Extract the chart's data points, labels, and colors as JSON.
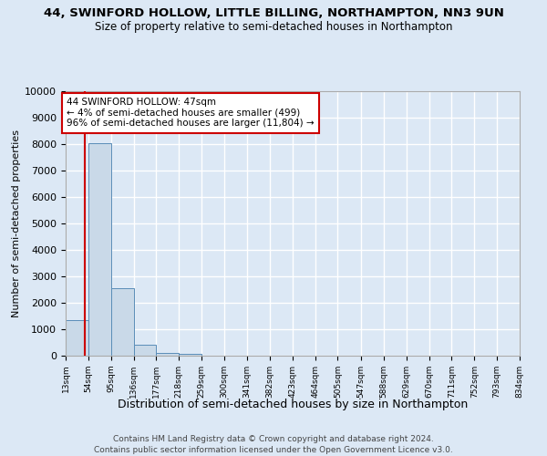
{
  "title1": "44, SWINFORD HOLLOW, LITTLE BILLING, NORTHAMPTON, NN3 9UN",
  "title2": "Size of property relative to semi-detached houses in Northampton",
  "xlabel": "Distribution of semi-detached houses by size in Northampton",
  "ylabel": "Number of semi-detached properties",
  "footer1": "Contains HM Land Registry data © Crown copyright and database right 2024.",
  "footer2": "Contains public sector information licensed under the Open Government Licence v3.0.",
  "annotation_title": "44 SWINFORD HOLLOW: 47sqm",
  "annotation_line2": "← 4% of semi-detached houses are smaller (499)",
  "annotation_line3": "96% of semi-detached houses are larger (11,804) →",
  "property_line_x": 47,
  "bar_edges": [
    13,
    54,
    95,
    136,
    177,
    218,
    259,
    300,
    341,
    382,
    423,
    464,
    505,
    547,
    588,
    629,
    670,
    711,
    752,
    793,
    834
  ],
  "bar_heights": [
    1350,
    8050,
    2550,
    400,
    120,
    80,
    0,
    0,
    0,
    0,
    0,
    0,
    0,
    0,
    0,
    0,
    0,
    0,
    0,
    0
  ],
  "bar_color": "#c9d9e8",
  "bar_edge_color": "#5a8db8",
  "property_line_color": "#cc0000",
  "annotation_box_color": "#cc0000",
  "bg_color": "#dce8f5",
  "plot_bg_color": "#dce8f5",
  "grid_color": "#ffffff",
  "ylim": [
    0,
    10000
  ],
  "yticks": [
    0,
    1000,
    2000,
    3000,
    4000,
    5000,
    6000,
    7000,
    8000,
    9000,
    10000
  ],
  "ytick_labels": [
    "0",
    "1000",
    "2000",
    "3000",
    "4000",
    "5000",
    "6000",
    "7000",
    "8000",
    "9000",
    "10000"
  ]
}
